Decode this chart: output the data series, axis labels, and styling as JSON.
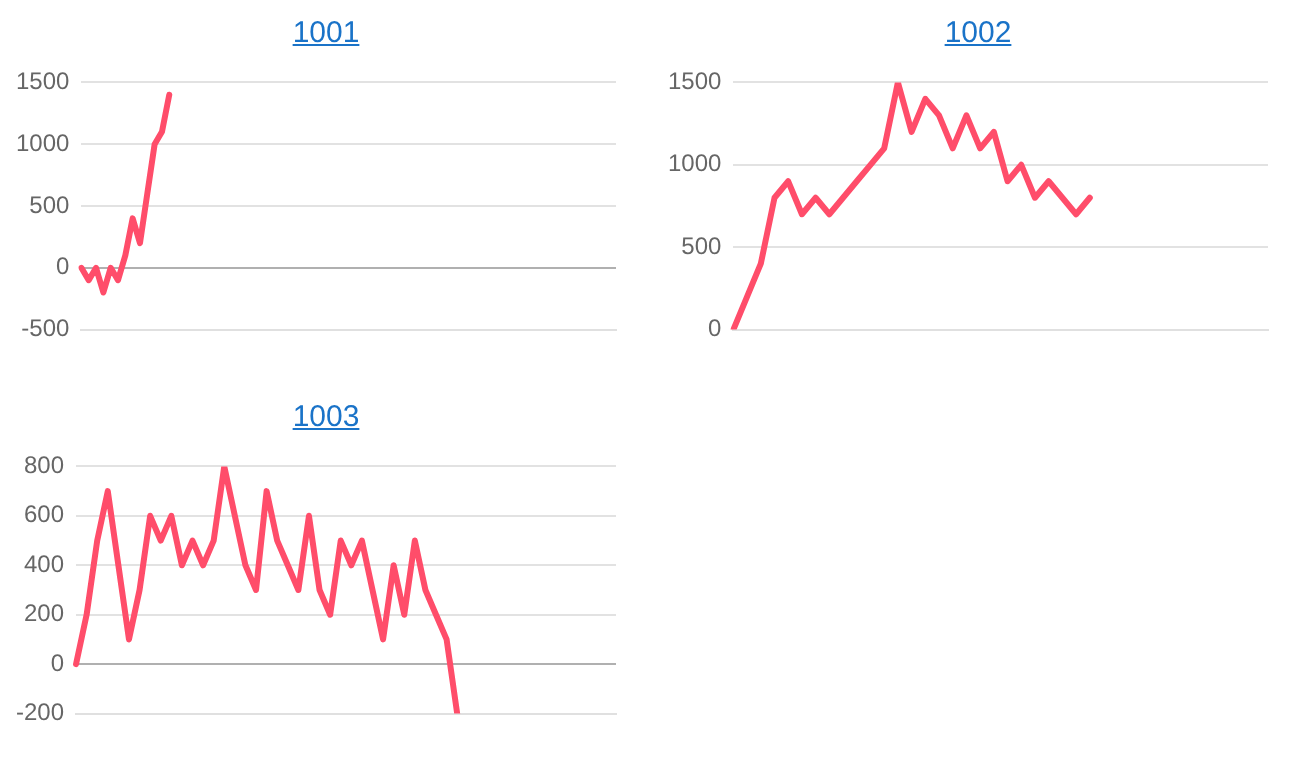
{
  "chart_data": [
    {
      "type": "line",
      "title": "1001",
      "color": "#ff4d6a",
      "marker": "none",
      "grid": "y",
      "tick_labels": "y",
      "ylim": [
        -500,
        1500
      ],
      "yticks": [
        -500,
        0,
        500,
        1000,
        1500
      ],
      "categories": [
        null,
        null,
        null,
        null,
        null,
        null,
        null,
        null,
        null,
        null,
        null,
        null,
        null,
        null,
        null,
        null,
        null,
        null,
        null,
        null,
        null,
        null,
        null,
        null,
        null,
        null,
        null,
        null,
        null,
        null,
        null,
        null,
        null,
        null,
        null,
        null,
        null,
        null,
        null,
        null,
        null,
        null,
        null,
        null,
        null,
        null,
        null,
        null,
        null,
        null,
        null,
        null,
        null,
        null,
        null,
        null,
        null,
        null,
        null,
        null,
        null,
        null,
        null,
        null,
        null,
        null,
        null,
        null,
        null,
        null,
        null,
        null,
        null,
        null
      ],
      "values": [
        0,
        -100,
        0,
        -200,
        0,
        -100,
        100,
        400,
        200,
        600,
        1000,
        1100,
        1400,
        null,
        null,
        null,
        null,
        null,
        null,
        null,
        null,
        null,
        null,
        null,
        null,
        null,
        null,
        null,
        null,
        null,
        null,
        null,
        null,
        null,
        null,
        null,
        null,
        null,
        null,
        null,
        null,
        null,
        null,
        null,
        null,
        null,
        null,
        null,
        null,
        null,
        null,
        null,
        null,
        null,
        null,
        null,
        null,
        null,
        null,
        null,
        null,
        null,
        null,
        null,
        null,
        null,
        null,
        null,
        null,
        null,
        null,
        null,
        null,
        null
      ]
    },
    {
      "type": "line",
      "title": "1002",
      "color": "#ff4d6a",
      "marker": "none",
      "grid": "y",
      "tick_labels": "y",
      "ylim": [
        0,
        1500
      ],
      "yticks": [
        0,
        500,
        1000,
        1500
      ],
      "categories": [
        null,
        null,
        null,
        null,
        null,
        null,
        null,
        null,
        null,
        null,
        null,
        null,
        null,
        null,
        null,
        null,
        null,
        null,
        null,
        null,
        null,
        null,
        null,
        null,
        null,
        null,
        null,
        null,
        null,
        null,
        null,
        null,
        null,
        null,
        null,
        null,
        null,
        null,
        null,
        null
      ],
      "values": [
        0,
        200,
        400,
        800,
        900,
        700,
        800,
        700,
        800,
        900,
        1000,
        1100,
        1500,
        1200,
        1400,
        1300,
        1100,
        1300,
        1100,
        1200,
        900,
        1000,
        800,
        900,
        800,
        700,
        800,
        null,
        null,
        null,
        null,
        null,
        null,
        null,
        null,
        null,
        null,
        null,
        null,
        null
      ]
    },
    {
      "type": "line",
      "title": "1003",
      "color": "#ff4d6a",
      "marker": "none",
      "grid": "y",
      "tick_labels": "y",
      "ylim": [
        -200,
        800
      ],
      "yticks": [
        -200,
        0,
        200,
        400,
        600,
        800
      ],
      "categories": [
        null,
        null,
        null,
        null,
        null,
        null,
        null,
        null,
        null,
        null,
        null,
        null,
        null,
        null,
        null,
        null,
        null,
        null,
        null,
        null,
        null,
        null,
        null,
        null,
        null,
        null,
        null,
        null,
        null,
        null,
        null,
        null,
        null,
        null,
        null,
        null,
        null,
        null,
        null,
        null,
        null,
        null,
        null,
        null,
        null,
        null,
        null,
        null,
        null,
        null,
        null,
        null
      ],
      "values": [
        0,
        200,
        500,
        700,
        400,
        100,
        300,
        600,
        500,
        600,
        400,
        500,
        400,
        500,
        800,
        600,
        400,
        300,
        700,
        500,
        400,
        300,
        600,
        300,
        200,
        500,
        400,
        500,
        300,
        100,
        400,
        200,
        500,
        300,
        200,
        100,
        -200,
        null,
        null,
        null,
        null,
        null,
        null,
        null,
        null,
        null,
        null,
        null,
        null,
        null,
        null,
        null
      ]
    }
  ]
}
